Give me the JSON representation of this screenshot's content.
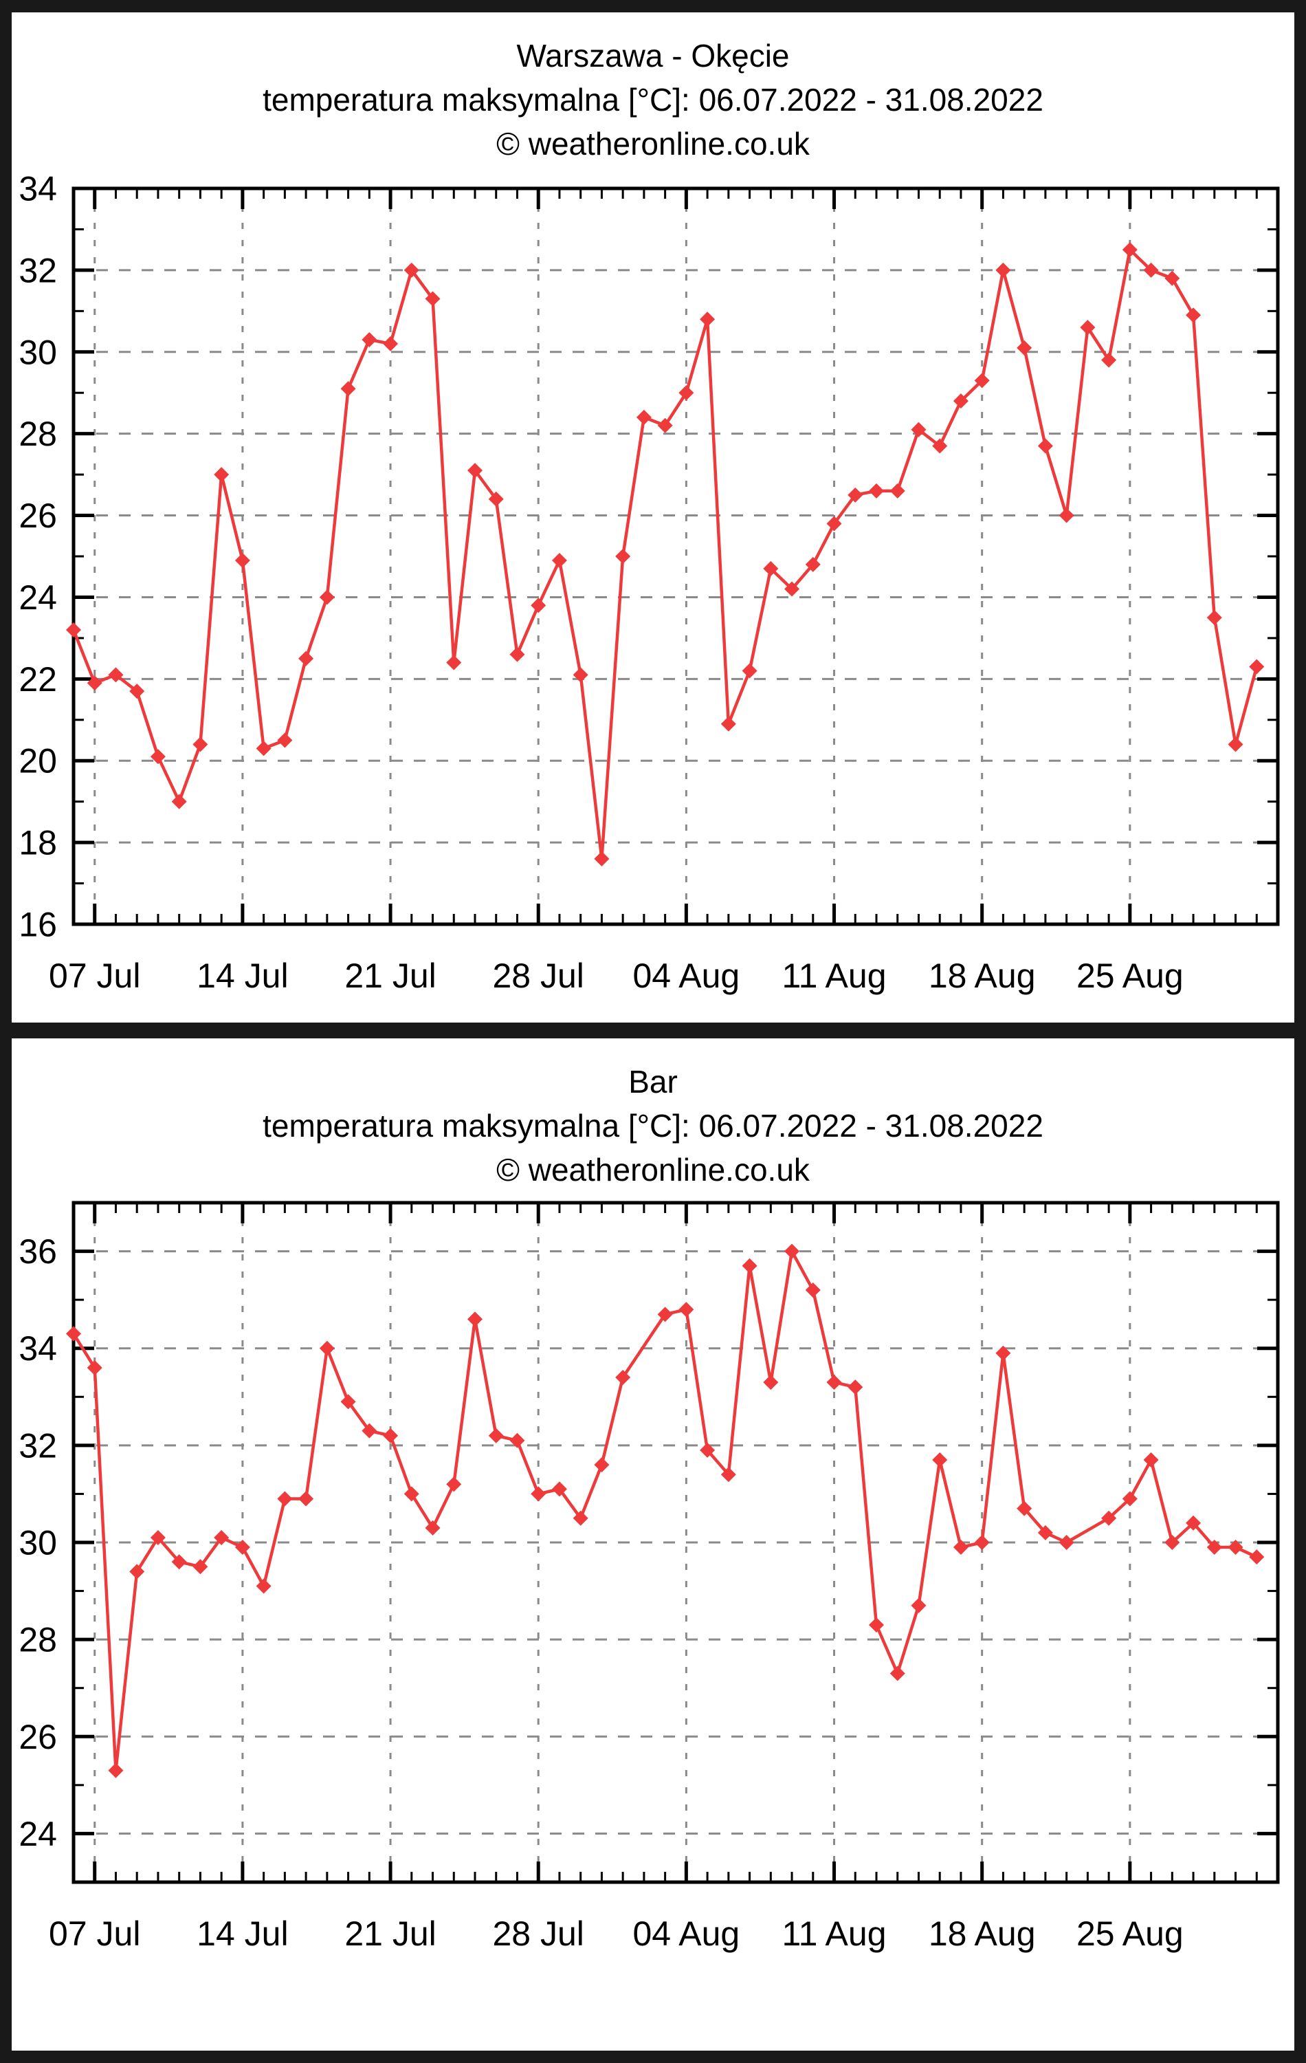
{
  "page": {
    "background_color": "#191919",
    "panel_color": "#ffffff",
    "source_site": "weatheronline.co.uk"
  },
  "chart_data": [
    {
      "type": "line",
      "title": "Warszawa - Okęcie",
      "subtitle": "temperatura maksymalna [°C]: 06.07.2022 - 31.08.2022",
      "copyright": "© weatheronline.co.uk",
      "line_color": "#ee3a3a",
      "marker": "diamond",
      "grid": true,
      "grid_color": "#8a8a8a",
      "axis_color": "#000000",
      "ylabel": "",
      "xlabel": "",
      "ylim": [
        16,
        34
      ],
      "y_ticks": [
        16,
        18,
        20,
        22,
        24,
        26,
        28,
        30,
        32,
        34
      ],
      "y_minor_step": 1,
      "x_domain": [
        0,
        57
      ],
      "x_gridline_days": [
        1,
        8,
        15,
        22,
        29,
        36,
        43,
        50
      ],
      "x_tick_labels": [
        "07 Jul",
        "14 Jul",
        "21 Jul",
        "28 Jul",
        "04 Aug",
        "11 Aug",
        "18 Aug",
        "25 Aug"
      ],
      "x_minor_step": 1,
      "x": [
        0,
        1,
        2,
        3,
        4,
        5,
        6,
        7,
        8,
        9,
        10,
        11,
        12,
        13,
        14,
        15,
        16,
        17,
        18,
        19,
        20,
        21,
        22,
        23,
        24,
        25,
        26,
        27,
        28,
        29,
        30,
        31,
        32,
        33,
        34,
        35,
        36,
        37,
        38,
        39,
        40,
        41,
        42,
        43,
        44,
        45,
        46,
        47,
        48,
        49,
        50,
        51,
        52,
        53,
        54,
        55,
        56
      ],
      "values": [
        23.2,
        21.9,
        22.1,
        21.7,
        20.1,
        19.0,
        20.4,
        27.0,
        24.9,
        20.3,
        20.5,
        22.5,
        24.0,
        29.1,
        30.3,
        30.2,
        32.0,
        31.3,
        22.4,
        27.1,
        26.4,
        22.6,
        23.8,
        24.9,
        22.1,
        17.6,
        25.0,
        28.4,
        28.2,
        29.0,
        30.8,
        20.9,
        22.2,
        24.7,
        24.2,
        24.8,
        25.8,
        26.5,
        26.6,
        26.6,
        28.1,
        27.7,
        28.8,
        29.3,
        32.0,
        30.1,
        27.7,
        26.0,
        30.6,
        29.8,
        32.5,
        32.0,
        31.8,
        30.9,
        23.5,
        20.4,
        22.3
      ]
    },
    {
      "type": "line",
      "title": "Bar",
      "subtitle": "temperatura maksymalna [°C]: 06.07.2022 - 31.08.2022",
      "copyright": "© weatheronline.co.uk",
      "line_color": "#ee3a3a",
      "marker": "diamond",
      "grid": true,
      "grid_color": "#8a8a8a",
      "axis_color": "#000000",
      "ylabel": "",
      "xlabel": "",
      "ylim": [
        23,
        37
      ],
      "y_ticks": [
        24,
        26,
        28,
        30,
        32,
        34,
        36
      ],
      "y_minor_step": 1,
      "x_domain": [
        0,
        57
      ],
      "x_gridline_days": [
        1,
        8,
        15,
        22,
        29,
        36,
        43,
        50
      ],
      "x_tick_labels": [
        "07 Jul",
        "14 Jul",
        "21 Jul",
        "28 Jul",
        "04 Aug",
        "11 Aug",
        "18 Aug",
        "25 Aug"
      ],
      "x_minor_step": 1,
      "x": [
        0,
        1,
        2,
        3,
        4,
        5,
        6,
        7,
        8,
        9,
        10,
        11,
        12,
        13,
        14,
        15,
        16,
        17,
        18,
        19,
        20,
        21,
        22,
        23,
        24,
        25,
        26,
        28,
        29,
        30,
        31,
        32,
        33,
        34,
        35,
        36,
        37,
        38,
        39,
        40,
        41,
        42,
        43,
        44,
        45,
        46,
        47,
        49,
        50,
        51,
        52,
        53,
        54,
        55,
        56
      ],
      "values": [
        34.3,
        33.6,
        25.3,
        29.4,
        30.1,
        29.6,
        29.5,
        30.1,
        29.9,
        29.1,
        30.9,
        30.9,
        34.0,
        32.9,
        32.3,
        32.2,
        31.0,
        30.3,
        31.2,
        34.6,
        32.2,
        32.1,
        31.0,
        31.1,
        30.5,
        31.6,
        33.4,
        34.7,
        34.8,
        31.9,
        31.4,
        35.7,
        33.3,
        36.0,
        35.2,
        33.3,
        33.2,
        28.3,
        27.3,
        28.7,
        31.7,
        29.9,
        30.0,
        33.9,
        30.7,
        30.2,
        30.0,
        30.5,
        30.9,
        31.7,
        30.0,
        30.4,
        29.9,
        29.9,
        29.7
      ]
    }
  ]
}
